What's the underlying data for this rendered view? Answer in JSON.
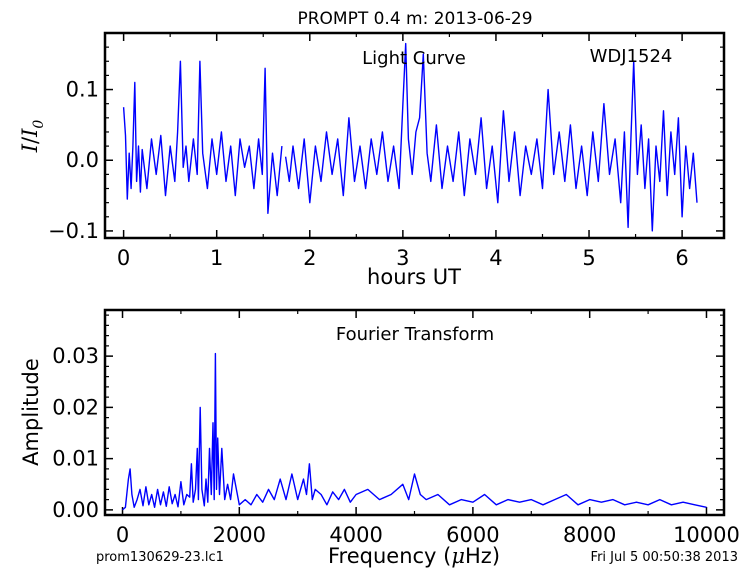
{
  "figure": {
    "title": "PROMPT 0.4 m:  2013-06-29",
    "footer_left": "prom130629-23.lc1",
    "footer_right": "Fri Jul  5 00:50:38 2013"
  },
  "chart_data": [
    {
      "type": "line",
      "annotations": [
        "Light Curve",
        "WDJ1524"
      ],
      "xlabel": "hours UT",
      "ylabel_main": "I",
      "ylabel_sep": "/",
      "ylabel_base": "I",
      "ylabel_sub": "0",
      "xlim": [
        -0.2,
        6.45
      ],
      "ylim": [
        -0.11,
        0.18
      ],
      "xticks": [
        0,
        1,
        2,
        3,
        4,
        5,
        6
      ],
      "xtick_labels": [
        "0",
        "1",
        "2",
        "3",
        "4",
        "5",
        "6"
      ],
      "yticks": [
        -0.1,
        0.0,
        0.1
      ],
      "ytick_labels": [
        "−0.1",
        "0.0",
        "0.1"
      ],
      "color": "#0000ff",
      "series": [
        {
          "segments": [
            {
              "x": [
                0.0,
                0.02,
                0.04,
                0.06,
                0.08,
                0.1,
                0.12,
                0.14,
                0.16,
                0.18,
                0.2,
                0.25,
                0.3,
                0.35,
                0.4,
                0.45,
                0.5,
                0.55,
                0.58,
                0.61,
                0.64,
                0.67,
                0.7,
                0.75,
                0.79,
                0.82,
                0.85,
                0.9,
                0.95,
                1.0,
                1.05,
                1.1,
                1.15,
                1.2,
                1.25,
                1.3,
                1.35,
                1.4,
                1.45,
                1.49,
                1.52,
                1.55,
                1.6,
                1.65,
                1.7
              ],
              "y": [
                0.075,
                0.035,
                -0.055,
                0.01,
                -0.04,
                0.02,
                0.11,
                -0.03,
                0.02,
                -0.045,
                0.015,
                -0.04,
                0.03,
                -0.02,
                0.035,
                -0.05,
                0.02,
                -0.03,
                0.04,
                0.14,
                -0.01,
                0.02,
                -0.03,
                0.03,
                -0.02,
                0.14,
                0.01,
                -0.04,
                0.03,
                -0.02,
                0.04,
                -0.03,
                0.02,
                -0.05,
                0.03,
                -0.01,
                0.02,
                -0.04,
                0.03,
                -0.02,
                0.13,
                -0.075,
                0.01,
                -0.05,
                0.02
              ]
            },
            {
              "x": [
                1.74,
                1.78,
                1.82,
                1.88,
                1.94,
                2.0,
                2.06,
                2.12,
                2.18,
                2.24,
                2.3,
                2.36,
                2.42,
                2.48,
                2.54,
                2.6,
                2.66,
                2.72,
                2.78,
                2.84,
                2.9,
                2.96,
                3.0,
                3.03,
                3.06,
                3.1,
                3.14,
                3.18,
                3.22,
                3.26,
                3.3,
                3.36,
                3.42,
                3.48,
                3.54,
                3.6,
                3.66,
                3.72,
                3.78,
                3.84,
                3.9,
                3.96,
                4.02,
                4.08,
                4.14,
                4.2,
                4.26,
                4.32,
                4.38,
                4.44,
                4.5,
                4.56,
                4.62,
                4.68,
                4.74,
                4.8,
                4.86,
                4.92,
                4.98,
                5.04,
                5.1,
                5.16,
                5.22,
                5.28,
                5.34,
                5.38,
                5.42,
                5.45,
                5.48,
                5.52,
                5.56,
                5.6,
                5.64,
                5.68,
                5.72,
                5.76,
                5.8,
                5.84,
                5.88,
                5.92,
                5.96,
                6.0,
                6.04,
                6.08,
                6.12,
                6.16
              ],
              "y": [
                0.005,
                -0.03,
                0.02,
                -0.04,
                0.03,
                -0.06,
                0.02,
                -0.03,
                0.04,
                -0.02,
                0.03,
                -0.05,
                0.06,
                -0.03,
                0.02,
                -0.04,
                0.03,
                -0.02,
                0.04,
                -0.03,
                0.02,
                -0.04,
                0.08,
                0.165,
                0.03,
                -0.02,
                0.04,
                0.06,
                0.15,
                0.01,
                -0.03,
                0.05,
                -0.04,
                0.02,
                -0.03,
                0.04,
                -0.05,
                0.03,
                -0.02,
                0.06,
                -0.04,
                0.02,
                -0.06,
                0.07,
                -0.03,
                0.04,
                -0.05,
                0.02,
                -0.02,
                0.03,
                -0.04,
                0.1,
                -0.02,
                0.04,
                -0.03,
                0.05,
                -0.04,
                0.02,
                -0.05,
                0.04,
                -0.03,
                0.08,
                -0.02,
                0.03,
                -0.06,
                0.04,
                -0.095,
                0.03,
                0.14,
                -0.02,
                0.05,
                -0.04,
                0.03,
                -0.1,
                0.02,
                -0.03,
                0.07,
                -0.05,
                0.04,
                -0.02,
                0.06,
                -0.08,
                0.02,
                -0.04,
                0.01,
                -0.06
              ]
            }
          ]
        }
      ]
    },
    {
      "type": "line",
      "annotations": [
        "Fourier Transform"
      ],
      "xlabel_pre": "Frequency (",
      "xlabel_mu": "μ",
      "xlabel_post": "Hz)",
      "ylabel": "Amplitude",
      "xlim": [
        -300,
        10300
      ],
      "ylim": [
        -0.001,
        0.039
      ],
      "xticks": [
        0,
        2000,
        4000,
        6000,
        8000,
        10000
      ],
      "xtick_labels": [
        "0",
        "2000",
        "4000",
        "6000",
        "8000",
        "10000"
      ],
      "yticks": [
        0.0,
        0.01,
        0.02,
        0.03
      ],
      "ytick_labels": [
        "0.00",
        "0.01",
        "0.02",
        "0.03"
      ],
      "color": "#0000ff",
      "series": [
        {
          "x": [
            0,
            50,
            100,
            130,
            160,
            200,
            250,
            300,
            350,
            400,
            450,
            500,
            550,
            600,
            650,
            700,
            750,
            800,
            850,
            900,
            950,
            1000,
            1050,
            1100,
            1150,
            1180,
            1210,
            1250,
            1280,
            1300,
            1330,
            1360,
            1400,
            1430,
            1460,
            1490,
            1520,
            1550,
            1570,
            1590,
            1610,
            1630,
            1660,
            1700,
            1750,
            1800,
            1850,
            1900,
            2000,
            2100,
            2200,
            2300,
            2400,
            2500,
            2600,
            2700,
            2800,
            2900,
            3000,
            3100,
            3150,
            3200,
            3250,
            3300,
            3400,
            3500,
            3600,
            3700,
            3800,
            3900,
            4000,
            4200,
            4400,
            4600,
            4800,
            4900,
            5000,
            5100,
            5200,
            5400,
            5600,
            5800,
            6000,
            6200,
            6400,
            6600,
            6800,
            7000,
            7200,
            7400,
            7600,
            7800,
            8000,
            8200,
            8400,
            8600,
            8800,
            9000,
            9200,
            9400,
            9600,
            9800,
            10000
          ],
          "y": [
            0.0,
            0.0005,
            0.006,
            0.008,
            0.003,
            0.0005,
            0.002,
            0.004,
            0.0008,
            0.0045,
            0.001,
            0.003,
            0.0005,
            0.004,
            0.001,
            0.0035,
            0.0007,
            0.0045,
            0.0012,
            0.003,
            0.0006,
            0.0055,
            0.001,
            0.003,
            0.0025,
            0.009,
            0.0015,
            0.004,
            0.012,
            0.002,
            0.02,
            0.004,
            0.0008,
            0.006,
            0.0015,
            0.012,
            0.003,
            0.017,
            0.002,
            0.0305,
            0.004,
            0.014,
            0.003,
            0.012,
            0.002,
            0.005,
            0.002,
            0.007,
            0.001,
            0.002,
            0.001,
            0.003,
            0.0015,
            0.004,
            0.002,
            0.006,
            0.002,
            0.007,
            0.002,
            0.006,
            0.003,
            0.009,
            0.002,
            0.004,
            0.003,
            0.001,
            0.0035,
            0.002,
            0.004,
            0.0015,
            0.003,
            0.004,
            0.002,
            0.003,
            0.005,
            0.002,
            0.007,
            0.003,
            0.002,
            0.003,
            0.001,
            0.002,
            0.0015,
            0.003,
            0.001,
            0.002,
            0.0015,
            0.002,
            0.001,
            0.002,
            0.003,
            0.001,
            0.002,
            0.0015,
            0.002,
            0.001,
            0.0015,
            0.001,
            0.002,
            0.001,
            0.0015,
            0.001,
            0.0005
          ]
        }
      ]
    }
  ]
}
